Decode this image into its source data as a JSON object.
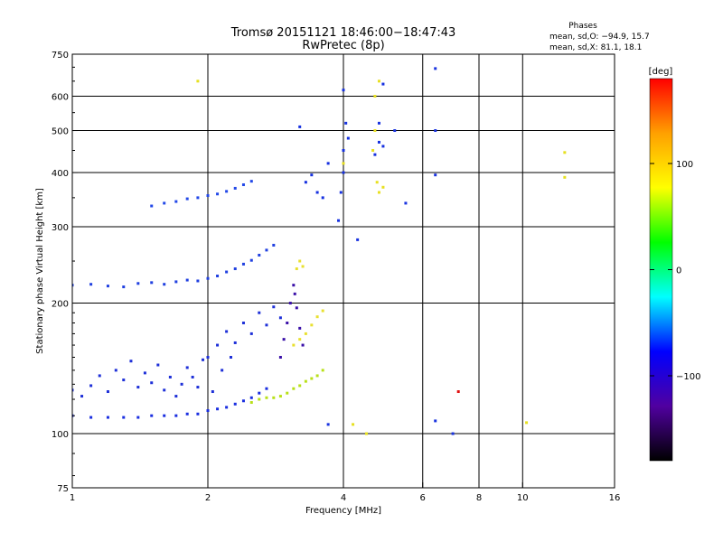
{
  "chart_data": {
    "type": "scatter",
    "title": "Tromsø 20151121 18:46:00−18:47:43",
    "subtitle": "RwPretec (8p)",
    "xlabel": "Frequency [MHz]",
    "ylabel": "Stationary phase Virtual Height [km]",
    "x_scale": "log",
    "y_scale": "log",
    "xlim": [
      1,
      16
    ],
    "ylim": [
      75,
      750
    ],
    "x_ticks": [
      1,
      2,
      4,
      6,
      8,
      10,
      16
    ],
    "y_ticks": [
      75,
      100,
      200,
      300,
      400,
      500,
      600,
      750
    ],
    "x_gridlines": [
      2,
      4,
      6,
      8,
      10
    ],
    "y_gridlines": [
      100,
      200,
      300,
      400,
      500,
      600
    ],
    "grid": true,
    "phases_box": {
      "title": "Phases",
      "line_o": "mean, sd,O: −94.9, 15.7",
      "line_x": "mean, sd,X:  81.1, 18.1"
    },
    "colorbar": {
      "label": "[deg]",
      "range": [
        -180,
        180
      ],
      "ticks": [
        100,
        0,
        -100
      ],
      "tick_labels": [
        "100",
        "0",
        "−100"
      ],
      "colors": [
        "#ff0000",
        "#ffa000",
        "#ffff00",
        "#00ff00",
        "#00ffff",
        "#0000ff",
        "#5000a0",
        "#000000"
      ]
    },
    "series": [
      {
        "color": "#1a2ee0",
        "points": [
          [
            1.0,
            110
          ],
          [
            1.1,
            109
          ],
          [
            1.2,
            109
          ],
          [
            1.3,
            109
          ],
          [
            1.4,
            109
          ],
          [
            1.5,
            110
          ],
          [
            1.6,
            110
          ],
          [
            1.7,
            110
          ],
          [
            1.8,
            111
          ],
          [
            1.9,
            111
          ],
          [
            2.0,
            113
          ],
          [
            2.1,
            114
          ],
          [
            2.2,
            115
          ],
          [
            2.3,
            117
          ],
          [
            2.4,
            119
          ],
          [
            2.5,
            121
          ],
          [
            2.6,
            124
          ],
          [
            2.7,
            127
          ]
        ]
      },
      {
        "color": "#1e30d8",
        "points": [
          [
            1.0,
            126
          ],
          [
            1.05,
            122
          ],
          [
            1.1,
            129
          ],
          [
            1.15,
            136
          ],
          [
            1.2,
            125
          ],
          [
            1.25,
            140
          ],
          [
            1.3,
            133
          ],
          [
            1.35,
            147
          ],
          [
            1.4,
            128
          ],
          [
            1.45,
            138
          ],
          [
            1.5,
            131
          ],
          [
            1.55,
            144
          ],
          [
            1.6,
            126
          ],
          [
            1.65,
            135
          ],
          [
            1.7,
            122
          ],
          [
            1.75,
            130
          ],
          [
            1.8,
            142
          ],
          [
            1.85,
            135
          ],
          [
            1.9,
            128
          ],
          [
            1.95,
            148
          ],
          [
            2.0,
            150
          ],
          [
            2.05,
            125
          ],
          [
            2.1,
            160
          ],
          [
            2.15,
            140
          ],
          [
            2.2,
            172
          ],
          [
            2.25,
            150
          ],
          [
            2.3,
            162
          ],
          [
            2.4,
            180
          ],
          [
            2.5,
            170
          ],
          [
            2.6,
            190
          ],
          [
            2.7,
            178
          ],
          [
            2.8,
            196
          ],
          [
            2.9,
            185
          ]
        ]
      },
      {
        "color": "#2040e0",
        "points": [
          [
            1.0,
            220
          ],
          [
            1.1,
            221
          ],
          [
            1.2,
            219
          ],
          [
            1.3,
            218
          ],
          [
            1.4,
            222
          ],
          [
            1.5,
            223
          ],
          [
            1.6,
            221
          ],
          [
            1.7,
            224
          ],
          [
            1.8,
            226
          ],
          [
            1.9,
            225
          ],
          [
            2.0,
            228
          ],
          [
            2.1,
            231
          ],
          [
            2.2,
            236
          ],
          [
            2.3,
            240
          ],
          [
            2.4,
            246
          ],
          [
            2.5,
            251
          ],
          [
            2.6,
            258
          ],
          [
            2.7,
            265
          ],
          [
            2.8,
            272
          ]
        ]
      },
      {
        "color": "#2248e8",
        "points": [
          [
            1.5,
            335
          ],
          [
            1.6,
            340
          ],
          [
            1.7,
            343
          ],
          [
            1.8,
            348
          ],
          [
            1.9,
            350
          ],
          [
            2.0,
            354
          ],
          [
            2.1,
            357
          ],
          [
            2.2,
            362
          ],
          [
            2.3,
            368
          ],
          [
            2.4,
            375
          ],
          [
            2.5,
            382
          ]
        ]
      },
      {
        "color": "#3a10a8",
        "points": [
          [
            2.9,
            150
          ],
          [
            2.95,
            165
          ],
          [
            3.0,
            180
          ],
          [
            3.05,
            200
          ],
          [
            3.1,
            220
          ],
          [
            3.12,
            210
          ],
          [
            3.15,
            195
          ],
          [
            3.2,
            175
          ],
          [
            3.25,
            160
          ]
        ]
      },
      {
        "color": "#b8e018",
        "points": [
          [
            2.5,
            118
          ],
          [
            2.6,
            120
          ],
          [
            2.7,
            121
          ],
          [
            2.8,
            121
          ],
          [
            2.9,
            122
          ],
          [
            3.0,
            124
          ],
          [
            3.1,
            127
          ],
          [
            3.2,
            129
          ],
          [
            3.3,
            132
          ],
          [
            3.4,
            134
          ],
          [
            3.5,
            136
          ],
          [
            3.6,
            140
          ]
        ]
      },
      {
        "color": "#e8e030",
        "points": [
          [
            3.1,
            160
          ],
          [
            3.2,
            165
          ],
          [
            3.3,
            170
          ],
          [
            3.4,
            178
          ],
          [
            3.5,
            186
          ],
          [
            3.6,
            192
          ],
          [
            3.15,
            240
          ],
          [
            3.2,
            250
          ],
          [
            3.25,
            243
          ]
        ]
      },
      {
        "color": "#1530e0",
        "points": [
          [
            3.9,
            310
          ],
          [
            3.95,
            360
          ],
          [
            4.0,
            400
          ],
          [
            4.0,
            450
          ],
          [
            4.05,
            520
          ],
          [
            4.0,
            620
          ],
          [
            4.1,
            480
          ],
          [
            4.7,
            440
          ],
          [
            4.8,
            470
          ],
          [
            4.9,
            460
          ],
          [
            4.8,
            520
          ],
          [
            4.9,
            640
          ],
          [
            3.3,
            380
          ],
          [
            3.4,
            395
          ],
          [
            3.5,
            360
          ],
          [
            3.6,
            350
          ],
          [
            3.2,
            510
          ],
          [
            3.7,
            420
          ]
        ]
      },
      {
        "color": "#e8e020",
        "points": [
          [
            4.7,
            600
          ],
          [
            4.8,
            650
          ],
          [
            4.7,
            500
          ],
          [
            4.65,
            450
          ],
          [
            4.75,
            380
          ],
          [
            4.8,
            360
          ],
          [
            4.9,
            370
          ],
          [
            4.0,
            420
          ]
        ]
      },
      {
        "color": "#1a34e0",
        "points": [
          [
            6.4,
            695
          ],
          [
            6.4,
            500
          ],
          [
            6.4,
            395
          ],
          [
            6.4,
            107
          ],
          [
            7.0,
            100
          ],
          [
            3.7,
            105
          ],
          [
            4.3,
            280
          ],
          [
            5.2,
            500
          ],
          [
            5.5,
            340
          ]
        ]
      },
      {
        "color": "#e6e020",
        "points": [
          [
            12.4,
            445
          ],
          [
            12.4,
            390
          ],
          [
            1.9,
            650
          ],
          [
            10.2,
            106
          ],
          [
            4.2,
            105
          ],
          [
            4.5,
            100
          ]
        ]
      },
      {
        "color": "#e01010",
        "points": [
          [
            7.2,
            125
          ]
        ]
      }
    ]
  }
}
